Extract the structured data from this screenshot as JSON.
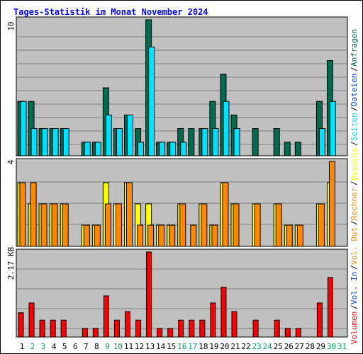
{
  "title": "Tages-Statistik im Monat November 2024",
  "colors": {
    "anfragen": "#006b4f",
    "dateien": "#00e0ff",
    "seiten": "#00e0ff",
    "besuche": "#ffff00",
    "rechner": "#ff8800",
    "volumen": "#ff0000",
    "panel_bg": "#c0c0c0",
    "weekend_day": "#00ac5c",
    "weekday_day": "#000000"
  },
  "chart_data": [
    {
      "type": "bar",
      "title": "",
      "ymax_label": "10",
      "ylim": [
        0,
        10
      ],
      "grid": true,
      "categories": [
        "1",
        "2",
        "3",
        "4",
        "5",
        "6",
        "7",
        "8",
        "9",
        "10",
        "11",
        "12",
        "13",
        "14",
        "15",
        "16",
        "17",
        "18",
        "19",
        "20",
        "21",
        "22",
        "23",
        "24",
        "25",
        "26",
        "27",
        "28",
        "29",
        "30",
        "31"
      ],
      "series": [
        {
          "name": "Anfragen",
          "values": [
            4,
            4,
            2,
            2,
            2,
            0,
            1,
            1,
            5,
            2,
            3,
            2,
            10,
            1,
            1,
            2,
            2,
            2,
            4,
            6,
            3,
            0,
            2,
            0,
            2,
            1,
            1,
            0,
            4,
            7,
            0
          ]
        },
        {
          "name": "Dateien",
          "values": [
            4,
            2,
            2,
            2,
            2,
            0,
            1,
            1,
            3,
            2,
            3,
            1,
            8,
            1,
            1,
            1,
            0,
            2,
            2,
            4,
            2,
            0,
            0,
            0,
            0,
            0,
            0,
            0,
            2,
            4,
            0
          ]
        },
        {
          "name": "Seiten",
          "values": [
            4,
            2,
            2,
            2,
            2,
            0,
            1,
            1,
            3,
            2,
            3,
            1,
            8,
            1,
            1,
            1,
            0,
            2,
            2,
            4,
            2,
            0,
            2,
            0,
            2,
            1,
            1,
            0,
            2,
            4,
            0
          ]
        }
      ],
      "legend_side": [
        "Anfragen",
        "Dateien",
        "Seiten"
      ]
    },
    {
      "type": "bar",
      "title": "",
      "ymax_label": "4",
      "ylim": [
        0,
        4
      ],
      "grid": true,
      "series": [
        {
          "name": "Besuche",
          "values": [
            3,
            2,
            2,
            2,
            2,
            0,
            1,
            1,
            3,
            2,
            3,
            2,
            2,
            1,
            1,
            2,
            0,
            2,
            1,
            3,
            2,
            0,
            2,
            0,
            2,
            1,
            1,
            0,
            2,
            3,
            0
          ]
        },
        {
          "name": "Rechner",
          "values": [
            3,
            3,
            2,
            2,
            2,
            0,
            1,
            1,
            2,
            2,
            3,
            1,
            1,
            1,
            1,
            2,
            1,
            2,
            1,
            3,
            2,
            0,
            2,
            0,
            2,
            1,
            1,
            0,
            2,
            4,
            0
          ]
        }
      ],
      "legend_side": [
        "Besuche",
        "Rechner"
      ]
    },
    {
      "type": "bar",
      "title": "",
      "ymax_label": "2.17 KB",
      "ylim": [
        0,
        2.17
      ],
      "grid": true,
      "series": [
        {
          "name": "Volumen",
          "values": [
            0.62,
            0.87,
            0.43,
            0.43,
            0.43,
            0,
            0.22,
            0.22,
            1.05,
            0.43,
            0.65,
            0.43,
            2.17,
            0.22,
            0.22,
            0.43,
            0.43,
            0.43,
            0.87,
            1.27,
            0.65,
            0,
            0.43,
            0,
            0.43,
            0.22,
            0.22,
            0,
            0.87,
            1.52,
            0
          ]
        }
      ],
      "legend_side": [
        "Volumen",
        "Vol. In",
        "Vol. Out"
      ]
    }
  ],
  "side_legend_colors": {
    "Anfragen": "#006b4f",
    "Dateien": "#0040ff",
    "Seiten": "#00e0ff",
    "Besuche": "#ffff00",
    "Rechner": "#ff8800",
    "Out": "#ff8800",
    "Volumen": "#ff0000",
    "Vol. In": "#0040ff",
    "Vol. Out": "#ff8800"
  },
  "weekend_days": [
    "2",
    "3",
    "9",
    "10",
    "16",
    "17",
    "23",
    "24",
    "30",
    "31"
  ]
}
